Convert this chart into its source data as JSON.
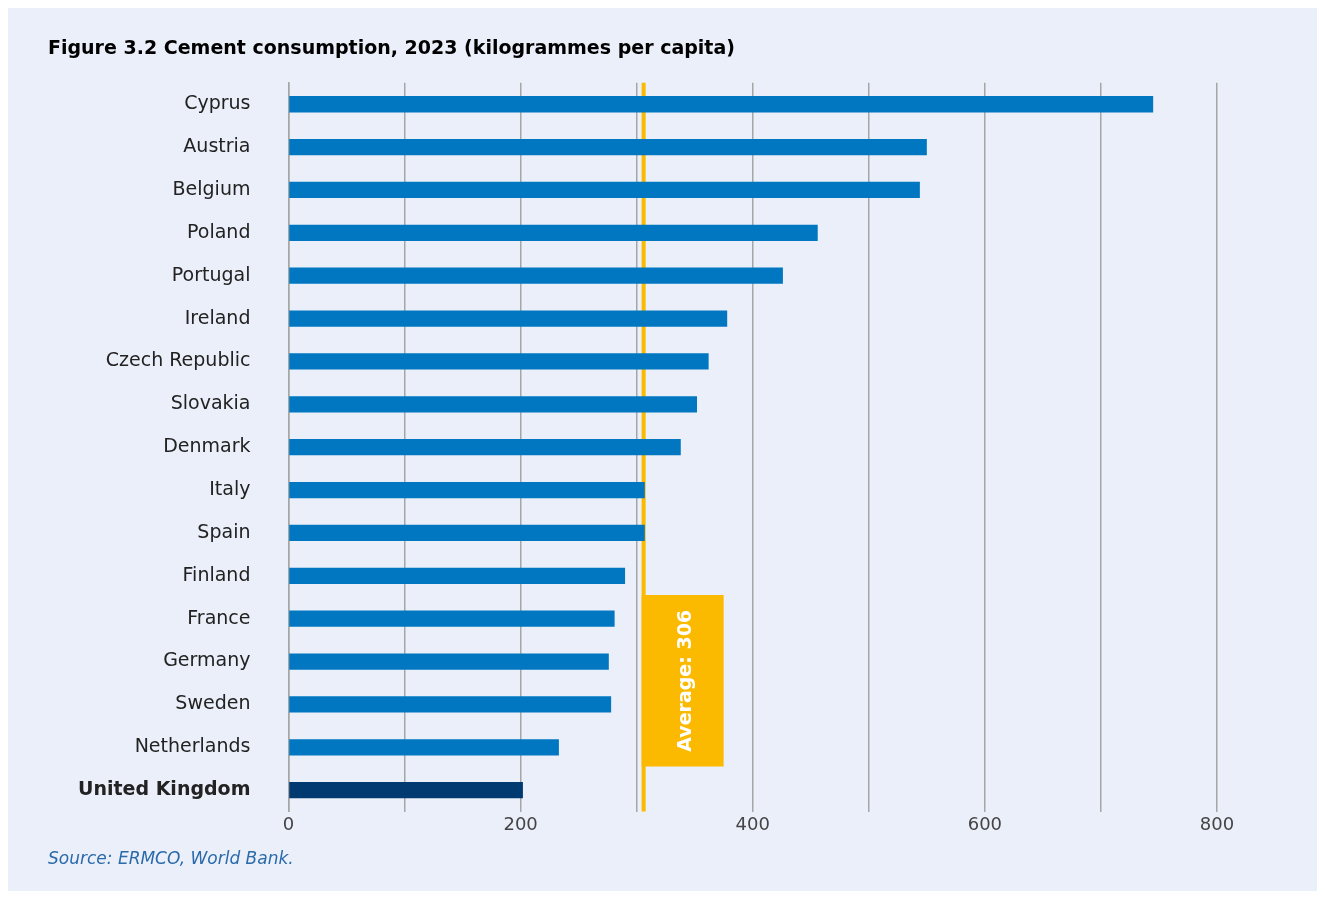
{
  "chart_data": {
    "type": "bar",
    "orientation": "horizontal",
    "title": "Figure 3.2 Cement consumption, 2023 (kilogrammes per capita)",
    "categories": [
      "Cyprus",
      "Austria",
      "Belgium",
      "Poland",
      "Portugal",
      "Ireland",
      "Czech Republic",
      "Slovakia",
      "Denmark",
      "Italy",
      "Spain",
      "Finland",
      "France",
      "Germany",
      "Sweden",
      "Netherlands",
      "United Kingdom"
    ],
    "values": [
      745,
      550,
      544,
      456,
      426,
      378,
      362,
      352,
      338,
      307,
      307,
      290,
      281,
      276,
      278,
      233,
      202
    ],
    "colors": [
      "#0077c0",
      "#0077c0",
      "#0077c0",
      "#0077c0",
      "#0077c0",
      "#0077c0",
      "#0077c0",
      "#0077c0",
      "#0077c0",
      "#0077c0",
      "#0077c0",
      "#0077c0",
      "#0077c0",
      "#0077c0",
      "#0077c0",
      "#0077c0",
      "#003a70"
    ],
    "xlim": [
      0,
      800
    ],
    "xticks": [
      0,
      {
        "value": 100,
        "label": null
      },
      200,
      {
        "value": 300,
        "label": null
      },
      400,
      {
        "value": 500,
        "label": null
      },
      600,
      {
        "value": 700,
        "label": null
      },
      800
    ],
    "grid": "x",
    "legend": false,
    "ref_lines": [
      {
        "axis": "x",
        "value": 306,
        "label": "Average: 306",
        "color": "#fbb900"
      }
    ],
    "annotations": [
      "Source: ERMCO, World Bank."
    ]
  }
}
